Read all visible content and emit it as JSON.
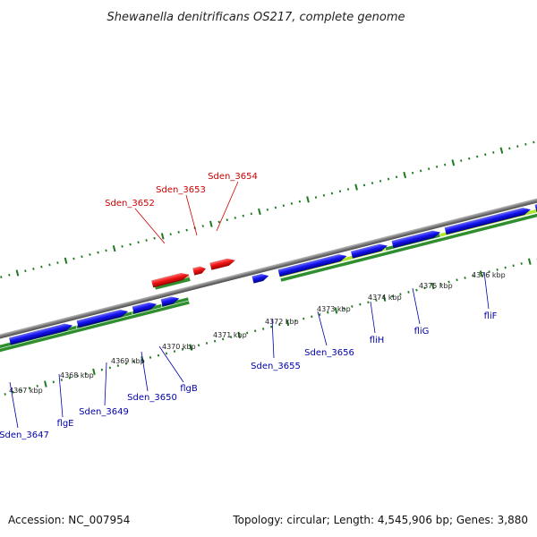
{
  "header": {
    "title": "Shewanella denitrificans OS217, complete genome"
  },
  "footer": {
    "accession": "Accession: NC_007954",
    "summary": "Topology: circular; Length: 4,545,906 bp; Genes: 3,880"
  },
  "colors": {
    "forward_gene": "#1010ee",
    "reverse_gene": "#ee1111",
    "backbone": "#808080",
    "track_dark_green": "#2f8f2f",
    "track_light_green": "#aee62e",
    "track_tan": "#c8b878",
    "tick_green": "#1e7a1e",
    "label_forward": "#0000aa",
    "label_reverse": "#cc0000"
  },
  "scale_labels": [
    "4367 kbp",
    "4368 kbp",
    "4369 kbp",
    "4370 kbp",
    "4371 kbp",
    "4372 kbp",
    "4373 kbp",
    "4374 kbp",
    "4375 kbp",
    "4376 kbp"
  ],
  "genes_top": [
    {
      "name": "Sden_3652",
      "strand": "reverse"
    },
    {
      "name": "Sden_3653",
      "strand": "reverse"
    },
    {
      "name": "Sden_3654",
      "strand": "reverse"
    }
  ],
  "genes_bottom": [
    {
      "name": "Sden_3647",
      "strand": "forward"
    },
    {
      "name": "flgE",
      "strand": "forward"
    },
    {
      "name": "Sden_3649",
      "strand": "forward"
    },
    {
      "name": "Sden_3650",
      "strand": "forward"
    },
    {
      "name": "flgB",
      "strand": "forward"
    },
    {
      "name": "Sden_3655",
      "strand": "forward"
    },
    {
      "name": "Sden_3656",
      "strand": "forward"
    },
    {
      "name": "fliH",
      "strand": "forward"
    },
    {
      "name": "fliG",
      "strand": "forward"
    },
    {
      "name": "fliF",
      "strand": "forward"
    }
  ]
}
